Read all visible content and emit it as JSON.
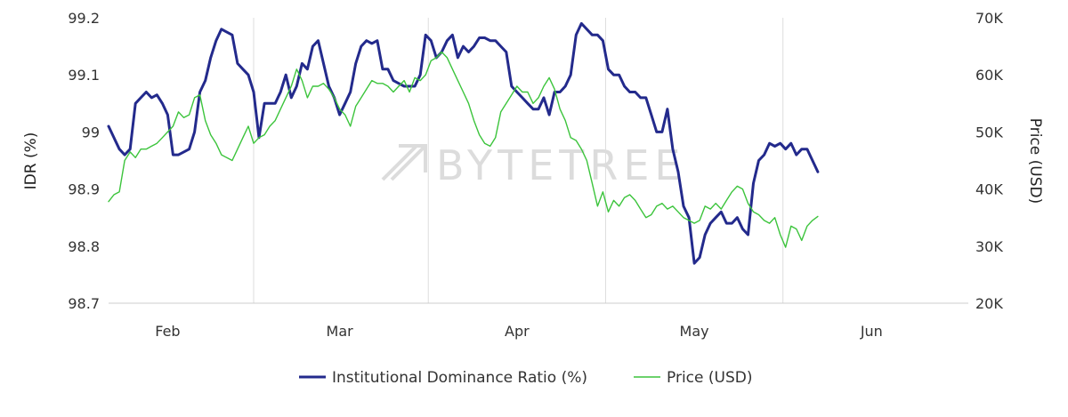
{
  "watermark": "BYTETREE",
  "chart_data": {
    "type": "line",
    "title": "",
    "xlabel": "",
    "ylabel": "IDR (%)",
    "y2label": "Price (USD)",
    "x_ticks": [
      "Feb",
      "Mar",
      "Apr",
      "May",
      "Jun"
    ],
    "x_range": [
      0,
      160
    ],
    "x_tick_positions": [
      11,
      43,
      76,
      109,
      142
    ],
    "ylim": [
      98.7,
      99.2
    ],
    "y_ticks": [
      "98.7",
      "98.8",
      "98.9",
      "99",
      "99.1",
      "99.2"
    ],
    "y2lim": [
      20000,
      70000
    ],
    "y2_ticks": [
      "20K",
      "30K",
      "40K",
      "50K",
      "60K",
      "70K"
    ],
    "grid_x": true,
    "grid_y": false,
    "legend_position": "bottom",
    "colors": {
      "idr": "#232a8c",
      "price": "#3cc43c"
    },
    "series": [
      {
        "name": "Institutional Dominance Ratio (%)",
        "axis": "left",
        "points": [
          [
            0,
            99.01
          ],
          [
            1,
            98.99
          ],
          [
            2,
            98.97
          ],
          [
            3,
            98.96
          ],
          [
            4,
            98.97
          ],
          [
            5,
            99.05
          ],
          [
            6,
            99.06
          ],
          [
            7,
            99.07
          ],
          [
            8,
            99.06
          ],
          [
            9,
            99.065
          ],
          [
            10,
            99.05
          ],
          [
            11,
            99.03
          ],
          [
            12,
            98.96
          ],
          [
            13,
            98.96
          ],
          [
            14,
            98.965
          ],
          [
            15,
            98.97
          ],
          [
            16,
            99.0
          ],
          [
            17,
            99.07
          ],
          [
            18,
            99.09
          ],
          [
            19,
            99.13
          ],
          [
            20,
            99.16
          ],
          [
            21,
            99.18
          ],
          [
            22,
            99.175
          ],
          [
            23,
            99.17
          ],
          [
            24,
            99.12
          ],
          [
            25,
            99.11
          ],
          [
            26,
            99.1
          ],
          [
            27,
            99.07
          ],
          [
            28,
            98.99
          ],
          [
            29,
            99.05
          ],
          [
            30,
            99.05
          ],
          [
            31,
            99.05
          ],
          [
            32,
            99.07
          ],
          [
            33,
            99.1
          ],
          [
            34,
            99.06
          ],
          [
            35,
            99.08
          ],
          [
            36,
            99.12
          ],
          [
            37,
            99.11
          ],
          [
            38,
            99.15
          ],
          [
            39,
            99.16
          ],
          [
            40,
            99.12
          ],
          [
            41,
            99.08
          ],
          [
            42,
            99.06
          ],
          [
            43,
            99.03
          ],
          [
            44,
            99.05
          ],
          [
            45,
            99.07
          ],
          [
            46,
            99.12
          ],
          [
            47,
            99.15
          ],
          [
            48,
            99.16
          ],
          [
            49,
            99.155
          ],
          [
            50,
            99.16
          ],
          [
            51,
            99.11
          ],
          [
            52,
            99.11
          ],
          [
            53,
            99.09
          ],
          [
            54,
            99.085
          ],
          [
            55,
            99.08
          ],
          [
            56,
            99.08
          ],
          [
            57,
            99.08
          ],
          [
            58,
            99.1
          ],
          [
            59,
            99.17
          ],
          [
            60,
            99.16
          ],
          [
            61,
            99.13
          ],
          [
            62,
            99.14
          ],
          [
            63,
            99.16
          ],
          [
            64,
            99.17
          ],
          [
            65,
            99.13
          ],
          [
            66,
            99.15
          ],
          [
            67,
            99.14
          ],
          [
            68,
            99.15
          ],
          [
            69,
            99.165
          ],
          [
            70,
            99.165
          ],
          [
            71,
            99.16
          ],
          [
            72,
            99.16
          ],
          [
            73,
            99.15
          ],
          [
            74,
            99.14
          ],
          [
            75,
            99.08
          ],
          [
            76,
            99.07
          ],
          [
            77,
            99.06
          ],
          [
            78,
            99.05
          ],
          [
            79,
            99.04
          ],
          [
            80,
            99.04
          ],
          [
            81,
            99.06
          ],
          [
            82,
            99.03
          ],
          [
            83,
            99.07
          ],
          [
            84,
            99.07
          ],
          [
            85,
            99.08
          ],
          [
            86,
            99.1
          ],
          [
            87,
            99.17
          ],
          [
            88,
            99.19
          ],
          [
            89,
            99.18
          ],
          [
            90,
            99.17
          ],
          [
            91,
            99.17
          ],
          [
            92,
            99.16
          ],
          [
            93,
            99.11
          ],
          [
            94,
            99.1
          ],
          [
            95,
            99.1
          ],
          [
            96,
            99.08
          ],
          [
            97,
            99.07
          ],
          [
            98,
            99.07
          ],
          [
            99,
            99.06
          ],
          [
            100,
            99.06
          ],
          [
            101,
            99.03
          ],
          [
            102,
            99.0
          ],
          [
            103,
            99.0
          ],
          [
            104,
            99.04
          ],
          [
            105,
            98.97
          ],
          [
            106,
            98.93
          ],
          [
            107,
            98.87
          ],
          [
            108,
            98.85
          ],
          [
            109,
            98.77
          ],
          [
            110,
            98.78
          ],
          [
            111,
            98.82
          ],
          [
            112,
            98.84
          ],
          [
            113,
            98.85
          ],
          [
            114,
            98.86
          ],
          [
            115,
            98.84
          ],
          [
            116,
            98.84
          ],
          [
            117,
            98.85
          ],
          [
            118,
            98.83
          ],
          [
            119,
            98.82
          ],
          [
            120,
            98.91
          ],
          [
            121,
            98.95
          ],
          [
            122,
            98.96
          ],
          [
            123,
            98.98
          ],
          [
            124,
            98.975
          ],
          [
            125,
            98.98
          ],
          [
            126,
            98.97
          ],
          [
            127,
            98.98
          ],
          [
            128,
            98.96
          ],
          [
            129,
            98.97
          ],
          [
            130,
            98.97
          ],
          [
            131,
            98.95
          ],
          [
            132,
            98.93
          ]
        ]
      },
      {
        "name": "Price (USD)",
        "axis": "right",
        "points": [
          [
            0,
            37800
          ],
          [
            1,
            39000
          ],
          [
            2,
            39500
          ],
          [
            3,
            45000
          ],
          [
            4,
            46500
          ],
          [
            5,
            45500
          ],
          [
            6,
            47000
          ],
          [
            7,
            47000
          ],
          [
            8,
            47500
          ],
          [
            9,
            48000
          ],
          [
            10,
            49000
          ],
          [
            11,
            50000
          ],
          [
            12,
            51000
          ],
          [
            13,
            53500
          ],
          [
            14,
            52500
          ],
          [
            15,
            53000
          ],
          [
            16,
            56000
          ],
          [
            17,
            56500
          ],
          [
            18,
            52000
          ],
          [
            19,
            49500
          ],
          [
            20,
            48000
          ],
          [
            21,
            46000
          ],
          [
            22,
            45500
          ],
          [
            23,
            45000
          ],
          [
            24,
            47000
          ],
          [
            25,
            49000
          ],
          [
            26,
            51000
          ],
          [
            27,
            48000
          ],
          [
            28,
            49000
          ],
          [
            29,
            49500
          ],
          [
            30,
            51000
          ],
          [
            31,
            52000
          ],
          [
            32,
            54000
          ],
          [
            33,
            56000
          ],
          [
            34,
            58000
          ],
          [
            35,
            61000
          ],
          [
            36,
            59000
          ],
          [
            37,
            56000
          ],
          [
            38,
            58000
          ],
          [
            39,
            58000
          ],
          [
            40,
            58500
          ],
          [
            41,
            57500
          ],
          [
            42,
            56000
          ],
          [
            43,
            54000
          ],
          [
            44,
            53000
          ],
          [
            45,
            51000
          ],
          [
            46,
            54500
          ],
          [
            47,
            56000
          ],
          [
            48,
            57500
          ],
          [
            49,
            59000
          ],
          [
            50,
            58500
          ],
          [
            51,
            58500
          ],
          [
            52,
            58000
          ],
          [
            53,
            57000
          ],
          [
            54,
            58000
          ],
          [
            55,
            59000
          ],
          [
            56,
            57000
          ],
          [
            57,
            59500
          ],
          [
            58,
            59000
          ],
          [
            59,
            60000
          ],
          [
            60,
            62500
          ],
          [
            61,
            63000
          ],
          [
            62,
            64000
          ],
          [
            63,
            63000
          ],
          [
            64,
            61000
          ],
          [
            65,
            59000
          ],
          [
            66,
            57000
          ],
          [
            67,
            55000
          ],
          [
            68,
            52000
          ],
          [
            69,
            49500
          ],
          [
            70,
            48000
          ],
          [
            71,
            47500
          ],
          [
            72,
            49000
          ],
          [
            73,
            53500
          ],
          [
            74,
            55000
          ],
          [
            75,
            56500
          ],
          [
            76,
            58000
          ],
          [
            77,
            57000
          ],
          [
            78,
            57000
          ],
          [
            79,
            55000
          ],
          [
            80,
            56000
          ],
          [
            81,
            58000
          ],
          [
            82,
            59500
          ],
          [
            83,
            57500
          ],
          [
            84,
            54000
          ],
          [
            85,
            52000
          ],
          [
            86,
            49000
          ],
          [
            87,
            48500
          ],
          [
            88,
            47000
          ],
          [
            89,
            45000
          ],
          [
            90,
            41000
          ],
          [
            91,
            37000
          ],
          [
            92,
            39500
          ],
          [
            93,
            36000
          ],
          [
            94,
            38000
          ],
          [
            95,
            37000
          ],
          [
            96,
            38500
          ],
          [
            97,
            39000
          ],
          [
            98,
            38000
          ],
          [
            99,
            36500
          ],
          [
            100,
            35000
          ],
          [
            101,
            35500
          ],
          [
            102,
            37000
          ],
          [
            103,
            37500
          ],
          [
            104,
            36500
          ],
          [
            105,
            37000
          ],
          [
            106,
            36000
          ],
          [
            107,
            35000
          ],
          [
            108,
            34500
          ],
          [
            109,
            34000
          ],
          [
            110,
            34500
          ],
          [
            111,
            37000
          ],
          [
            112,
            36500
          ],
          [
            113,
            37500
          ],
          [
            114,
            36500
          ],
          [
            115,
            38000
          ],
          [
            116,
            39500
          ],
          [
            117,
            40500
          ],
          [
            118,
            40000
          ],
          [
            119,
            37500
          ],
          [
            120,
            36000
          ],
          [
            121,
            35500
          ],
          [
            122,
            34500
          ],
          [
            123,
            34000
          ],
          [
            124,
            35000
          ],
          [
            125,
            32000
          ],
          [
            126,
            29800
          ],
          [
            127,
            33500
          ],
          [
            128,
            33000
          ],
          [
            129,
            31000
          ],
          [
            130,
            33500
          ],
          [
            131,
            34500
          ],
          [
            132,
            35200
          ]
        ]
      }
    ]
  }
}
